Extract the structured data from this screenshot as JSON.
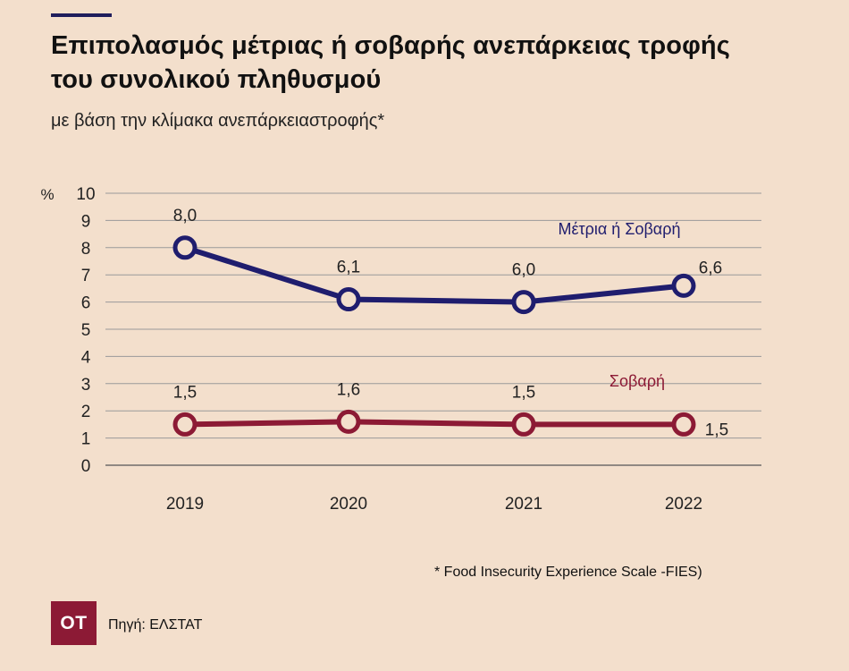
{
  "header": {
    "title_line1": "Επιπολασμός μέτριας ή σοβαρής ανεπάρκειας τροφής",
    "title_line2": "του συνολικού πληθυσμού",
    "subtitle": "με βάση την κλίμακα ανεπάρκειαστροφής*"
  },
  "footer": {
    "footnote": "*  Food Insecurity Experience Scale -FIES)",
    "logo_text": "OT",
    "source": "Πηγή: ΕΛΣΤΑΤ"
  },
  "colors": {
    "background": "#f3dfcc",
    "series_moderate_severe": "#1f1d6e",
    "series_severe": "#8c1a35",
    "grid": "#9a9a9a"
  },
  "chart_data": {
    "type": "line",
    "x": [
      "2019",
      "2020",
      "2021",
      "2022"
    ],
    "ylabel": "%",
    "ylim": [
      0,
      10
    ],
    "yticks": [
      "0",
      "1",
      "2",
      "3",
      "4",
      "5",
      "6",
      "7",
      "8",
      "9",
      "10"
    ],
    "grid": true,
    "series": [
      {
        "name": "Μέτρια ή Σοβαρή",
        "values": [
          8.0,
          6.1,
          6.0,
          6.6
        ],
        "labels": [
          "8,0",
          "6,1",
          "6,0",
          "6,6"
        ],
        "color": "#1f1d6e"
      },
      {
        "name": "Σοβαρή",
        "values": [
          1.5,
          1.6,
          1.5,
          1.5
        ],
        "labels": [
          "1,5",
          "1,6",
          "1,5",
          "1,5"
        ],
        "color": "#8c1a35"
      }
    ]
  }
}
